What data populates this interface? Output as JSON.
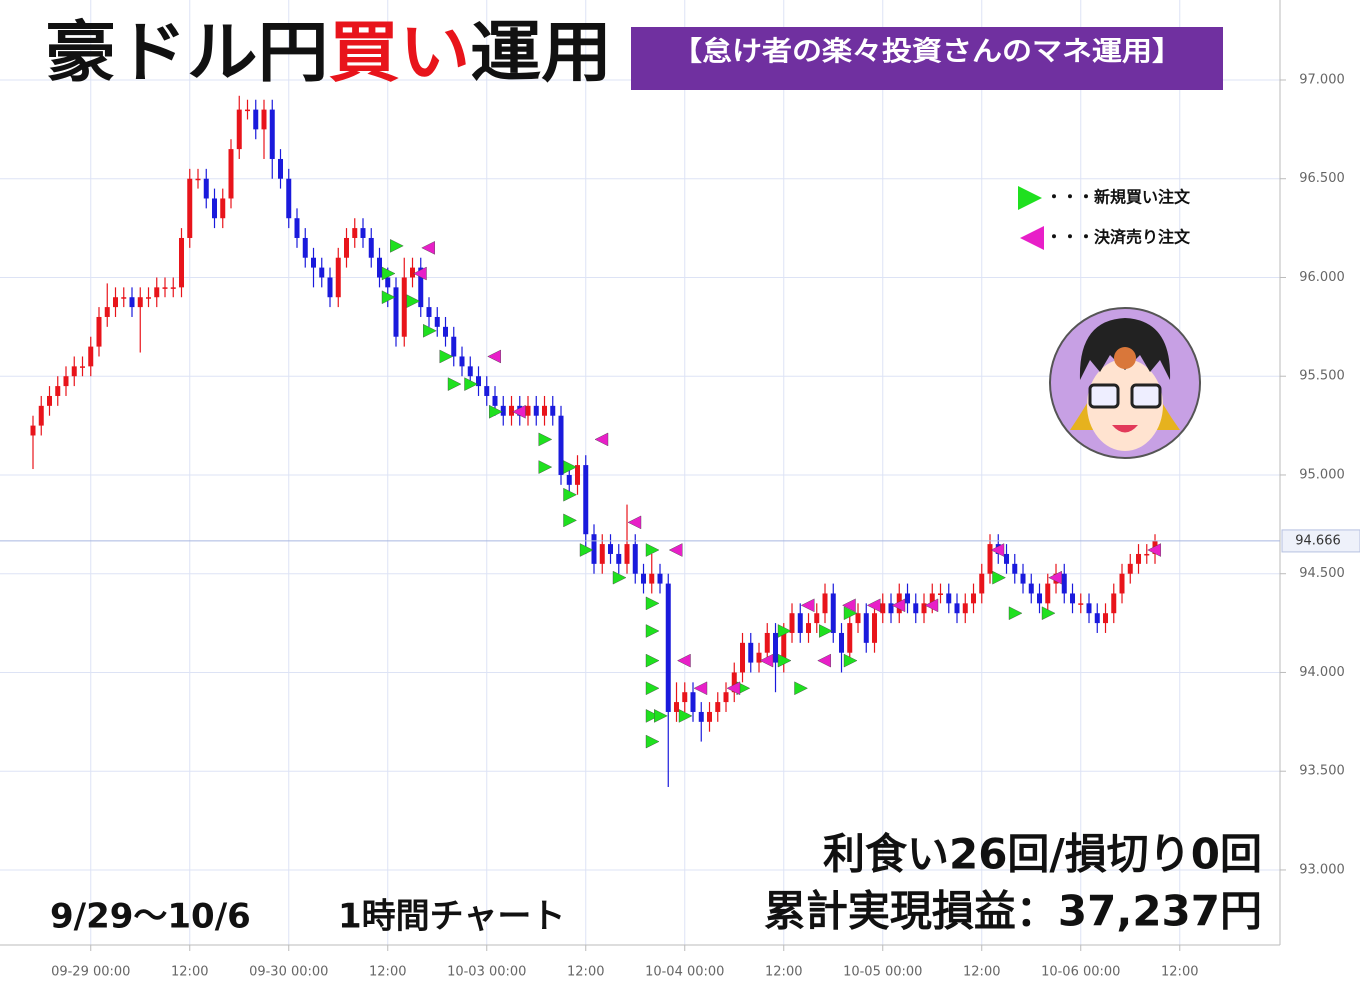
{
  "chart_data": {
    "type": "candlestick",
    "title_parts": [
      "豪ドル円",
      "買い",
      "運用"
    ],
    "subtitle": "【怠け者の楽々投資さんのマネ運用】",
    "period": "9/29〜10/6",
    "timeframe": "1時間チャート",
    "summary": [
      "利食い26回/損切り0回",
      "累計実現損益：37,237円"
    ],
    "up_color": "#e8141b",
    "down_color": "#1a1adc",
    "grid": true,
    "open": [
      95.2,
      95.25,
      95.35,
      95.4,
      95.45,
      95.5,
      95.55,
      95.55,
      95.65,
      95.8,
      95.85,
      95.9,
      95.9,
      95.85,
      95.9,
      95.9,
      95.95,
      95.95,
      95.95,
      96.2,
      96.5,
      96.5,
      96.4,
      96.3,
      96.4,
      96.65,
      96.85,
      96.85,
      96.75,
      96.85,
      96.6,
      96.5,
      96.3,
      96.2,
      96.1,
      96.05,
      96.0,
      95.9,
      96.1,
      96.2,
      96.25,
      96.2,
      96.1,
      96.0,
      95.95,
      95.7,
      96.0,
      96.05,
      95.85,
      95.8,
      95.75,
      95.7,
      95.6,
      95.55,
      95.5,
      95.45,
      95.4,
      95.35,
      95.3,
      95.35,
      95.3,
      95.35,
      95.3,
      95.35,
      95.3,
      95.0,
      94.95,
      95.05,
      94.7,
      94.55,
      94.65,
      94.6,
      94.55,
      94.65,
      94.5,
      94.45,
      94.5,
      94.45,
      93.8,
      93.85,
      93.9,
      93.8,
      93.75,
      93.8,
      93.85,
      93.9,
      94.0,
      94.15,
      94.05,
      94.1,
      94.2,
      94.05,
      94.2,
      94.3,
      94.2,
      94.25,
      94.3,
      94.4,
      94.2,
      94.1,
      94.25,
      94.3,
      94.15,
      94.3,
      94.35,
      94.3,
      94.4,
      94.35,
      94.3,
      94.35,
      94.4,
      94.4,
      94.35,
      94.3,
      94.35,
      94.4,
      94.5,
      94.65,
      94.6,
      94.55,
      94.5,
      94.45,
      94.4,
      94.35,
      94.45,
      94.5,
      94.4,
      94.35,
      94.35,
      94.3,
      94.25,
      94.3,
      94.4,
      94.5,
      94.55,
      94.6,
      94.6
    ],
    "high": [
      95.3,
      95.4,
      95.45,
      95.5,
      95.55,
      95.6,
      95.6,
      95.7,
      95.85,
      95.97,
      95.95,
      95.95,
      95.95,
      95.95,
      95.95,
      96.0,
      96.0,
      96.0,
      96.25,
      96.55,
      96.55,
      96.55,
      96.45,
      96.45,
      96.7,
      96.92,
      96.9,
      96.9,
      96.9,
      96.9,
      96.65,
      96.55,
      96.35,
      96.25,
      96.15,
      96.1,
      96.05,
      96.15,
      96.25,
      96.3,
      96.3,
      96.25,
      96.15,
      96.05,
      96.0,
      96.1,
      96.1,
      96.1,
      95.9,
      95.85,
      95.8,
      95.75,
      95.65,
      95.6,
      95.55,
      95.5,
      95.45,
      95.4,
      95.4,
      95.4,
      95.4,
      95.4,
      95.4,
      95.4,
      95.35,
      95.05,
      95.1,
      95.1,
      94.75,
      94.7,
      94.7,
      94.65,
      94.85,
      94.7,
      94.55,
      94.6,
      94.55,
      94.5,
      93.95,
      93.95,
      93.95,
      93.85,
      93.85,
      93.9,
      93.95,
      94.05,
      94.2,
      94.2,
      94.15,
      94.25,
      94.25,
      94.25,
      94.35,
      94.35,
      94.3,
      94.35,
      94.45,
      94.45,
      94.25,
      94.3,
      94.35,
      94.35,
      94.35,
      94.4,
      94.4,
      94.45,
      94.45,
      94.4,
      94.4,
      94.45,
      94.45,
      94.45,
      94.4,
      94.4,
      94.45,
      94.55,
      94.7,
      94.7,
      94.65,
      94.6,
      94.55,
      94.5,
      94.45,
      94.5,
      94.55,
      94.55,
      94.45,
      94.4,
      94.4,
      94.35,
      94.35,
      94.45,
      94.55,
      94.6,
      94.65,
      94.65,
      94.7
    ],
    "low": [
      95.03,
      95.2,
      95.3,
      95.35,
      95.4,
      95.45,
      95.5,
      95.5,
      95.6,
      95.75,
      95.8,
      95.85,
      95.8,
      95.62,
      95.85,
      95.85,
      95.9,
      95.9,
      95.9,
      96.15,
      96.45,
      96.35,
      96.25,
      96.25,
      96.35,
      96.6,
      96.8,
      96.7,
      96.6,
      96.5,
      96.45,
      96.25,
      96.15,
      96.05,
      95.95,
      95.95,
      95.85,
      95.85,
      96.05,
      96.15,
      96.15,
      96.05,
      95.95,
      95.85,
      95.65,
      95.65,
      95.95,
      95.8,
      95.75,
      95.7,
      95.65,
      95.55,
      95.5,
      95.45,
      95.4,
      95.35,
      95.3,
      95.25,
      95.25,
      95.25,
      95.25,
      95.25,
      95.25,
      95.25,
      94.95,
      94.9,
      94.9,
      94.6,
      94.5,
      94.5,
      94.55,
      94.5,
      94.5,
      94.45,
      94.4,
      94.4,
      94.4,
      93.42,
      93.75,
      93.8,
      93.75,
      93.65,
      93.7,
      93.75,
      93.8,
      93.85,
      93.95,
      94.0,
      94.0,
      94.05,
      93.9,
      94.0,
      94.15,
      94.15,
      94.15,
      94.2,
      94.25,
      94.15,
      94.0,
      94.05,
      94.2,
      94.1,
      94.1,
      94.25,
      94.25,
      94.25,
      94.3,
      94.25,
      94.25,
      94.3,
      94.35,
      94.3,
      94.25,
      94.25,
      94.3,
      94.35,
      94.45,
      94.55,
      94.5,
      94.45,
      94.4,
      94.35,
      94.3,
      94.3,
      94.4,
      94.35,
      94.3,
      94.3,
      94.25,
      94.2,
      94.2,
      94.25,
      94.35,
      94.45,
      94.5,
      94.55,
      94.55
    ],
    "close": [
      95.25,
      95.35,
      95.4,
      95.45,
      95.5,
      95.55,
      95.55,
      95.65,
      95.8,
      95.85,
      95.9,
      95.9,
      95.85,
      95.9,
      95.9,
      95.95,
      95.95,
      95.95,
      96.2,
      96.5,
      96.5,
      96.4,
      96.3,
      96.4,
      96.65,
      96.85,
      96.85,
      96.75,
      96.85,
      96.6,
      96.5,
      96.3,
      96.2,
      96.1,
      96.05,
      96.0,
      95.9,
      96.1,
      96.2,
      96.25,
      96.2,
      96.1,
      96.0,
      95.95,
      95.7,
      96.0,
      96.05,
      95.85,
      95.8,
      95.75,
      95.7,
      95.6,
      95.55,
      95.5,
      95.45,
      95.4,
      95.35,
      95.3,
      95.35,
      95.3,
      95.35,
      95.3,
      95.35,
      95.3,
      95.0,
      94.95,
      95.05,
      94.7,
      94.55,
      94.65,
      94.6,
      94.55,
      94.65,
      94.5,
      94.45,
      94.5,
      94.45,
      93.8,
      93.85,
      93.9,
      93.8,
      93.75,
      93.8,
      93.85,
      93.9,
      94.0,
      94.15,
      94.05,
      94.1,
      94.2,
      94.05,
      94.2,
      94.3,
      94.2,
      94.25,
      94.3,
      94.4,
      94.2,
      94.1,
      94.25,
      94.3,
      94.15,
      94.3,
      94.35,
      94.3,
      94.4,
      94.35,
      94.3,
      94.35,
      94.4,
      94.4,
      94.35,
      94.3,
      94.35,
      94.4,
      94.5,
      94.65,
      94.6,
      94.55,
      94.5,
      94.45,
      94.4,
      94.35,
      94.45,
      94.5,
      94.4,
      94.35,
      94.35,
      94.3,
      94.25,
      94.3,
      94.4,
      94.5,
      94.55,
      94.6,
      94.6,
      94.666
    ],
    "orders": [
      {
        "name": "・・・新規買い注文",
        "color": "#1fe01f",
        "direction": "right",
        "x": [
          45,
          44,
          44,
          47,
          49,
          51,
          52,
          54,
          57,
          63,
          63,
          66,
          66,
          66,
          68,
          72,
          76,
          76,
          76,
          76,
          76,
          76,
          76,
          77,
          80,
          87,
          92,
          92,
          94,
          97,
          100,
          100,
          118,
          120,
          124
        ],
        "y": [
          96.16,
          96.02,
          95.9,
          95.88,
          95.73,
          95.6,
          95.46,
          95.46,
          95.32,
          95.18,
          95.04,
          95.04,
          94.9,
          94.77,
          94.62,
          94.48,
          94.62,
          94.35,
          94.21,
          94.06,
          93.92,
          93.78,
          93.65,
          93.78,
          93.78,
          93.92,
          94.21,
          94.06,
          93.92,
          94.21,
          94.06,
          94.3,
          94.48,
          94.3,
          94.3
        ]
      },
      {
        "name": "・・・決済売り注文",
        "color": "#e81fc8",
        "direction": "left",
        "x": [
          47,
          46,
          55,
          58,
          68,
          72,
          77,
          78,
          80,
          84,
          88,
          93,
          95,
          98,
          101,
          104,
          108,
          116,
          123,
          135
        ],
        "y": [
          96.15,
          96.02,
          95.6,
          95.32,
          95.18,
          94.76,
          94.62,
          94.06,
          93.92,
          93.92,
          94.06,
          94.34,
          94.06,
          94.34,
          94.34,
          94.34,
          94.34,
          94.62,
          94.48,
          94.62
        ]
      }
    ],
    "xlim": [
      -4,
      151.15
    ],
    "xticks": [
      {
        "value": 7,
        "label": "09-29 00:00"
      },
      {
        "value": 19,
        "label": "12:00"
      },
      {
        "value": 31,
        "label": "09-30 00:00"
      },
      {
        "value": 43,
        "label": "12:00"
      },
      {
        "value": 55,
        "label": "10-03 00:00"
      },
      {
        "value": 67,
        "label": "12:00"
      },
      {
        "value": 79,
        "label": "10-04 00:00"
      },
      {
        "value": 91,
        "label": "12:00"
      },
      {
        "value": 103,
        "label": "10-05 00:00"
      },
      {
        "value": 115,
        "label": "12:00"
      },
      {
        "value": 127,
        "label": "10-06 00:00"
      },
      {
        "value": 139,
        "label": "12:00"
      }
    ],
    "ylim": [
      92.62,
      97.405
    ],
    "yticks": [
      {
        "value": 93,
        "label": "93.000"
      },
      {
        "value": 93.5,
        "label": "93.500"
      },
      {
        "value": 94,
        "label": "94.000"
      },
      {
        "value": 94.5,
        "label": "94.500"
      },
      {
        "value": 95,
        "label": "95.000"
      },
      {
        "value": 95.5,
        "label": "95.500"
      },
      {
        "value": 96,
        "label": "96.000"
      },
      {
        "value": 96.5,
        "label": "96.500"
      },
      {
        "value": 97,
        "label": "97.000"
      }
    ]
  }
}
